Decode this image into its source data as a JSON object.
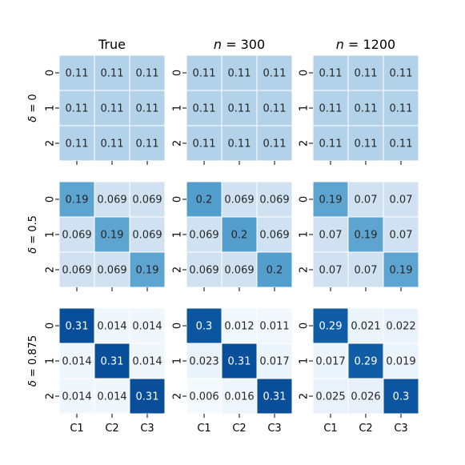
{
  "chart_data": {
    "type": "heatmap",
    "columns": [
      "True",
      "n = 300",
      "n = 1200"
    ],
    "rows": [
      "δ = 0",
      "δ = 0.5",
      "δ = 0.875"
    ],
    "x_tick_labels": [
      "C1",
      "C2",
      "C3"
    ],
    "y_tick_labels": [
      "0",
      "1",
      "2"
    ],
    "colormap": "Blues",
    "color_range": [
      0,
      0.35
    ],
    "grid": false,
    "panels": [
      {
        "row": 0,
        "col": 0,
        "values": [
          [
            "0.11",
            "0.11",
            "0.11"
          ],
          [
            "0.11",
            "0.11",
            "0.11"
          ],
          [
            "0.11",
            "0.11",
            "0.11"
          ]
        ]
      },
      {
        "row": 0,
        "col": 1,
        "values": [
          [
            "0.11",
            "0.11",
            "0.11"
          ],
          [
            "0.11",
            "0.11",
            "0.11"
          ],
          [
            "0.11",
            "0.11",
            "0.11"
          ]
        ]
      },
      {
        "row": 0,
        "col": 2,
        "values": [
          [
            "0.11",
            "0.11",
            "0.11"
          ],
          [
            "0.11",
            "0.11",
            "0.11"
          ],
          [
            "0.11",
            "0.11",
            "0.11"
          ]
        ]
      },
      {
        "row": 1,
        "col": 0,
        "values": [
          [
            "0.19",
            "0.069",
            "0.069"
          ],
          [
            "0.069",
            "0.19",
            "0.069"
          ],
          [
            "0.069",
            "0.069",
            "0.19"
          ]
        ]
      },
      {
        "row": 1,
        "col": 1,
        "values": [
          [
            "0.2",
            "0.069",
            "0.069"
          ],
          [
            "0.069",
            "0.2",
            "0.069"
          ],
          [
            "0.069",
            "0.069",
            "0.2"
          ]
        ]
      },
      {
        "row": 1,
        "col": 2,
        "values": [
          [
            "0.19",
            "0.07",
            "0.07"
          ],
          [
            "0.07",
            "0.19",
            "0.07"
          ],
          [
            "0.07",
            "0.07",
            "0.19"
          ]
        ]
      },
      {
        "row": 2,
        "col": 0,
        "values": [
          [
            "0.31",
            "0.014",
            "0.014"
          ],
          [
            "0.014",
            "0.31",
            "0.014"
          ],
          [
            "0.014",
            "0.014",
            "0.31"
          ]
        ]
      },
      {
        "row": 2,
        "col": 1,
        "values": [
          [
            "0.3",
            "0.012",
            "0.011"
          ],
          [
            "0.023",
            "0.31",
            "0.017"
          ],
          [
            "0.006",
            "0.016",
            "0.31"
          ]
        ]
      },
      {
        "row": 2,
        "col": 2,
        "values": [
          [
            "0.29",
            "0.021",
            "0.022"
          ],
          [
            "0.017",
            "0.29",
            "0.019"
          ],
          [
            "0.025",
            "0.026",
            "0.3"
          ]
        ]
      }
    ]
  }
}
